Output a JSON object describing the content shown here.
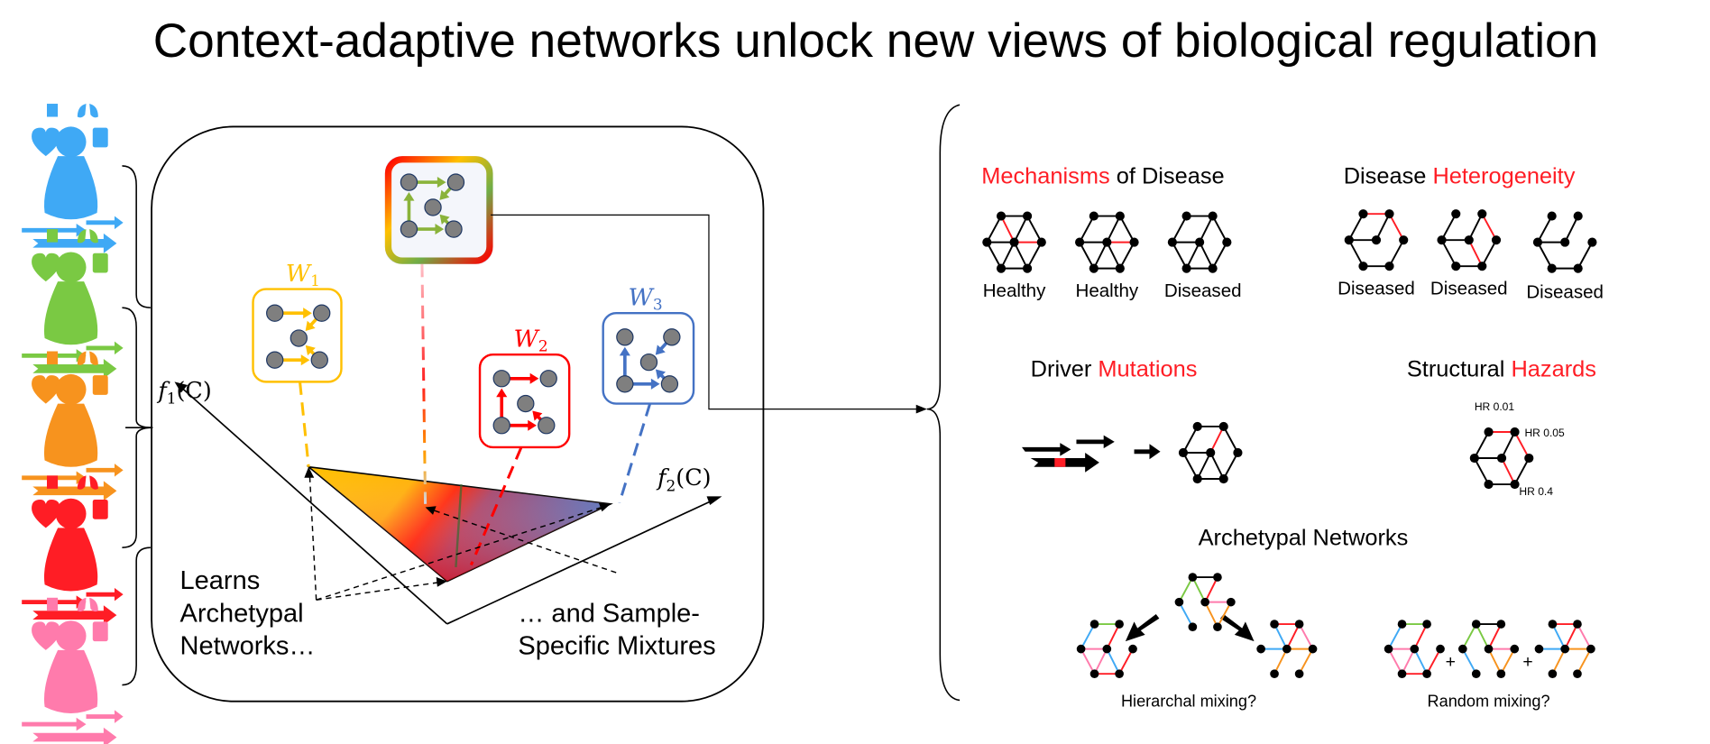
{
  "title": "Context-adaptive networks unlock new views of biological regulation",
  "colors": {
    "accent_red": "#FF1D25",
    "archetype_1": "#FFC000",
    "archetype_2": "#FF0000",
    "archetype_3": "#4472C4",
    "patients": [
      "#3FA9F5",
      "#7AC943",
      "#F7931E",
      "#FF1D25",
      "#FF7BAC"
    ]
  },
  "patients": {
    "icons": [
      "x-ray-icon",
      "lungs-icon",
      "heart-rate-icon",
      "scale-icon",
      "person-icon",
      "sequence-arrows-icon"
    ]
  },
  "model": {
    "axis_f1": {
      "fn": "f",
      "sub": "1",
      "arg": "(C)"
    },
    "axis_f2": {
      "fn": "f",
      "sub": "2",
      "arg": "(C)"
    },
    "archetypes": [
      {
        "symbol": "W",
        "sub": "1"
      },
      {
        "symbol": "W",
        "sub": "2"
      },
      {
        "symbol": "W",
        "sub": "3"
      }
    ],
    "left_caption": [
      "Learns",
      "Archetypal",
      "Networks…"
    ],
    "right_caption": [
      "… and Sample-",
      "Specific Mixtures"
    ]
  },
  "applications": {
    "mechanisms": {
      "highlight": "Mechanisms",
      "rest": " of Disease",
      "labels": [
        "Healthy",
        "Healthy",
        "Diseased"
      ]
    },
    "heterogeneity": {
      "rest": "Disease ",
      "highlight": "Heterogeneity",
      "labels": [
        "Diseased",
        "Diseased",
        "Diseased"
      ]
    },
    "drivers": {
      "rest": "Driver ",
      "highlight": "Mutations"
    },
    "hazards": {
      "rest": "Structural ",
      "highlight": "Hazards",
      "labels": [
        "HR 0.01",
        "HR 0.05",
        "HR 0.4"
      ]
    },
    "archetypal": {
      "title": "Archetypal Networks",
      "hierarchical": "Hierarchal mixing?",
      "random": "Random mixing?",
      "plus": "+"
    }
  }
}
